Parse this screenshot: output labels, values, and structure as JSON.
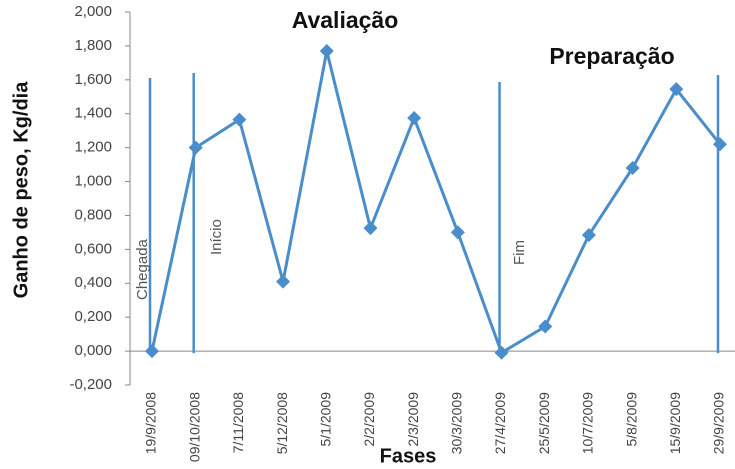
{
  "chart_data": {
    "type": "line",
    "phase_labels": [
      "Avaliação",
      "Preparação"
    ],
    "annotations": [
      "Chegada",
      "Início",
      "Fim"
    ],
    "x_label": "Fases",
    "y_label": "Ganho de peso, Kg/dia",
    "categories": [
      "19/9/2008",
      "09/10/2008",
      "7/11/2008",
      "5/12/2008",
      "5/1/2009",
      "2/2/2009",
      "2/3/2009",
      "30/3/2009",
      "27/4/2009",
      "25/5/2009",
      "10/7/2009",
      "5/8/2009",
      "15/9/2009",
      "29/9/2009"
    ],
    "values": [
      0,
      1.2,
      1.365,
      0.41,
      1.77,
      0.725,
      1.375,
      0.7,
      -0.01,
      0.145,
      0.685,
      1.08,
      1.545,
      1.22
    ],
    "color": "#4a8dcb",
    "ylim": [
      -0.2,
      2.0
    ],
    "yticks": [
      {
        "value": -0.2,
        "label": "-0,200"
      },
      {
        "value": 0,
        "label": "0,000"
      },
      {
        "value": 0.2,
        "label": "0,200"
      },
      {
        "value": 0.4,
        "label": "0,400"
      },
      {
        "value": 0.6,
        "label": "0,600"
      },
      {
        "value": 0.8,
        "label": "0,800"
      },
      {
        "value": 1.0,
        "label": "1,000"
      },
      {
        "value": 1.2,
        "label": "1,200"
      },
      {
        "value": 1.4,
        "label": "1,400"
      },
      {
        "value": 1.6,
        "label": "1,600"
      },
      {
        "value": 1.8,
        "label": "1,800"
      },
      {
        "value": 2.0,
        "label": "2,000"
      }
    ]
  }
}
